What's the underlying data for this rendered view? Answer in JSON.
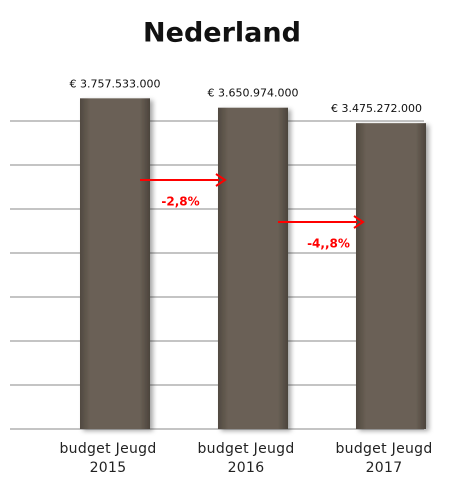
{
  "chart_data": {
    "type": "bar",
    "title": "Nederland",
    "categories": [
      "budget Jeugd 2015",
      "budget Jeugd 2016",
      "budget Jeugd 2017"
    ],
    "values": [
      3757533000,
      3650974000,
      3475272000
    ],
    "value_labels": [
      "€ 3.757.533.000",
      "€ 3.650.974.000",
      "€ 3.475.272.000"
    ],
    "color": "#6b6156",
    "ylim": [
      0,
      4000000000
    ],
    "yticks": [
      0,
      500000000,
      1000000000,
      1500000000,
      2000000000,
      2500000000,
      3000000000,
      3500000000
    ],
    "grid": true,
    "annotations": [
      "-2,8%",
      "-4,,8%"
    ],
    "annotation_color": "#ff0000"
  }
}
